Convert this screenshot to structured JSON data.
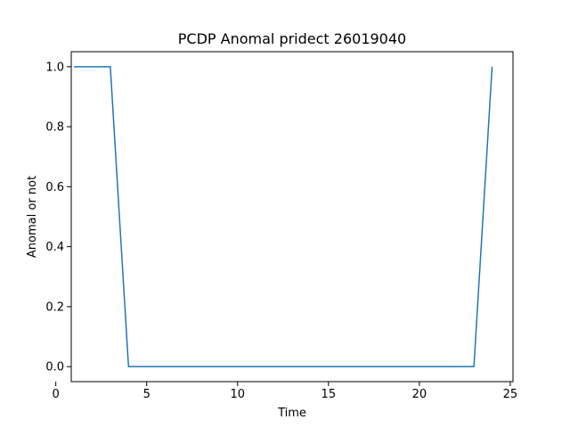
{
  "chart_data": {
    "type": "line",
    "title": "PCDP Anomal pridect 26019040",
    "xlabel": "Time",
    "ylabel": "Anomal or not",
    "xlim": [
      0.85,
      25.15
    ],
    "ylim": [
      -0.05,
      1.05
    ],
    "x_ticks": [
      0,
      5,
      10,
      15,
      20,
      25
    ],
    "y_ticks": [
      0.0,
      0.2,
      0.4,
      0.6,
      0.8,
      1.0
    ],
    "x_tick_labels": [
      "0",
      "5",
      "10",
      "15",
      "20",
      "25"
    ],
    "y_tick_labels": [
      "0.0",
      "0.2",
      "0.4",
      "0.6",
      "0.8",
      "1.0"
    ],
    "grid": false,
    "series": [
      {
        "color": "#1f77b4",
        "x": [
          1,
          2,
          3,
          4,
          5,
          6,
          7,
          8,
          9,
          10,
          11,
          12,
          13,
          14,
          15,
          16,
          17,
          18,
          19,
          20,
          21,
          22,
          23,
          24
        ],
        "y": [
          1,
          1,
          1,
          0,
          0,
          0,
          0,
          0,
          0,
          0,
          0,
          0,
          0,
          0,
          0,
          0,
          0,
          0,
          0,
          0,
          0,
          0,
          0,
          1
        ]
      }
    ]
  }
}
